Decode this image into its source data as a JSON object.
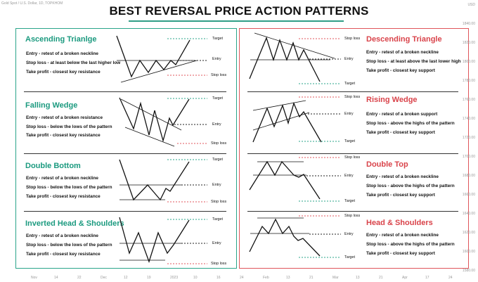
{
  "header": {
    "symbol_text": "Gold Spot / U.S. Dollar, 1D, TOPKHOM"
  },
  "title": "BEST REVERSAL PRICE ACTION PATTERNS",
  "colors": {
    "teal": "#1b9a7f",
    "red": "#d9434a",
    "target": "#2aa58a",
    "stop": "#e0555b",
    "entry": "#222222"
  },
  "labels": {
    "target": "Target",
    "entry": "Entry",
    "stop": "Stop loss"
  },
  "bullish": [
    {
      "name": "Ascending Trianlge",
      "lines": [
        "Entry - retest of a broken neckline",
        "Stop loss - at least below the last higher low",
        "Take profit - closest key resistance"
      ]
    },
    {
      "name": "Falling Wedge",
      "lines": [
        "Entry - retest of a broken resistance",
        "Stop loss - below the lows of the pattern",
        "Take profit - closest key resistance"
      ]
    },
    {
      "name": "Double Bottom",
      "lines": [
        "Entry - retest of a broken neckline",
        "Stop loss - below the lows of the pattern",
        "Take profit - closest key resistance"
      ]
    },
    {
      "name": "Inverted Head & Shoulders",
      "lines": [
        "Entry - retest of a broken neckline",
        "Stop loss - below the lows of the pattern",
        "Take profit - closest key resistance"
      ]
    }
  ],
  "bearish": [
    {
      "name": "Descending Triangle",
      "lines": [
        "Entry - retest of a broken neckline",
        "Stop loss - at least above the last lower high",
        "Take profit - closest key support"
      ]
    },
    {
      "name": "Rising Wedge",
      "lines": [
        "Entry - retest of a broken support",
        "Stop loss - above the highs of the pattern",
        "Take profit - closest key support"
      ]
    },
    {
      "name": "Double Top",
      "lines": [
        "Entry - retest of a broken neckline",
        "Stop loss - above the highs of the pattern",
        "Take profit - closest key support"
      ]
    },
    {
      "name": "Head & Shoulders",
      "lines": [
        "Entry - retest of a broken neckline",
        "Stop loss - above the highs of the pattern",
        "Take profit - closest key support"
      ]
    }
  ],
  "right_axis": [
    "USD",
    "1840.00",
    "1820.00",
    "1800.00",
    "1780.00",
    "1760.00",
    "1740.00",
    "1720.00",
    "1700.00",
    "1680.00",
    "1660.00",
    "1640.00",
    "1620.00",
    "1600.00",
    "1580.00"
  ],
  "bottom_axis": [
    "Nov",
    "14",
    "22",
    "Dec",
    "12",
    "19",
    "2023",
    "10",
    "16",
    "24",
    "Feb",
    "13",
    "21",
    "Mar",
    "13",
    "21",
    "Apr",
    "17",
    "24"
  ]
}
